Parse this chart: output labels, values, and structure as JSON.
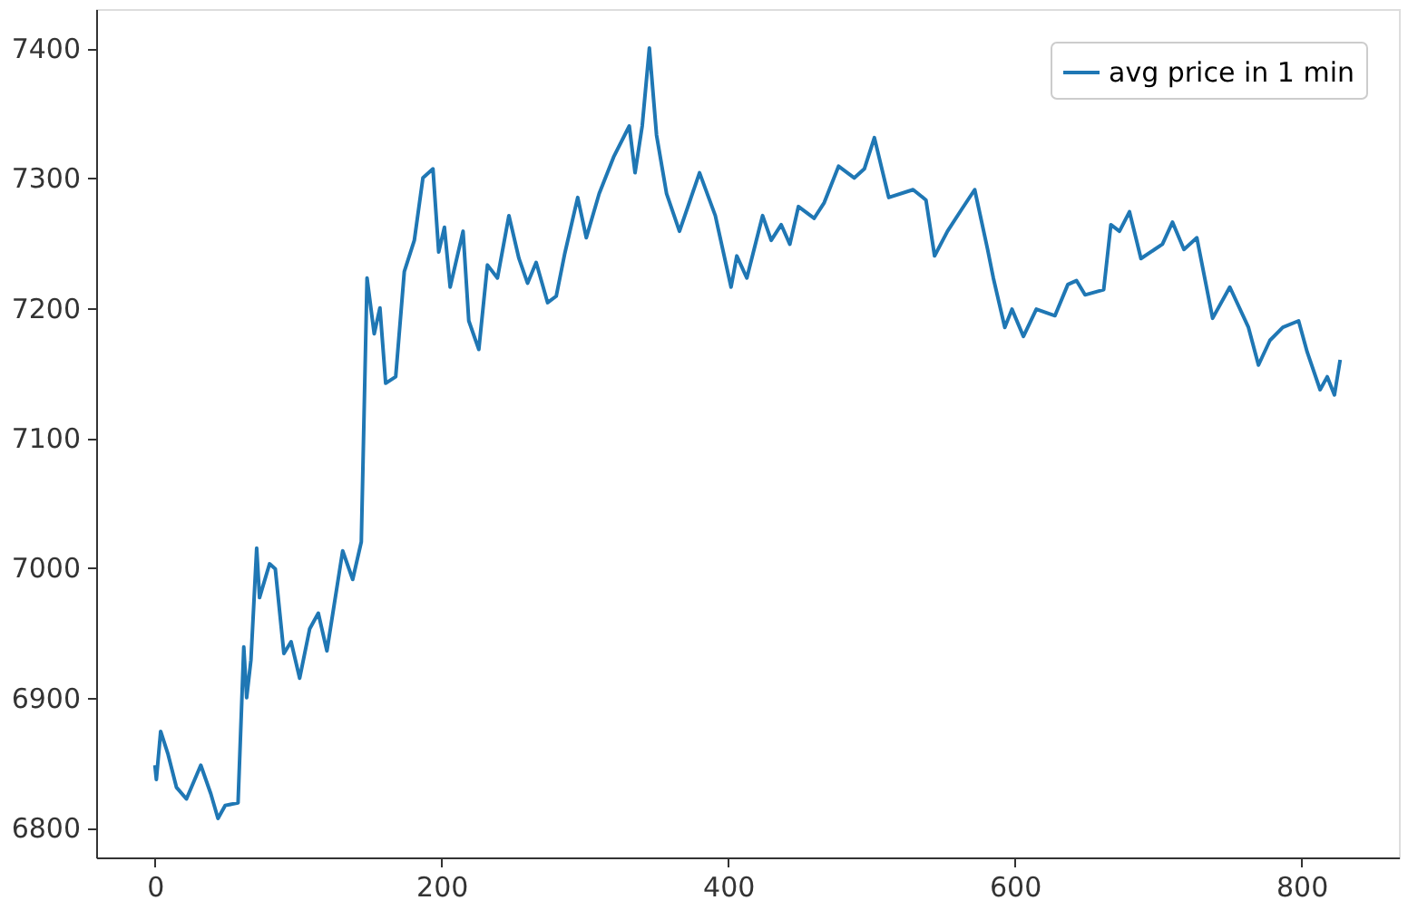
{
  "chart_data": {
    "type": "line",
    "xlim": [
      -41,
      868
    ],
    "xticks": [
      0,
      200,
      400,
      600,
      800
    ],
    "ylim": [
      6777,
      7430
    ],
    "yticks": [
      6800,
      6900,
      7000,
      7100,
      7200,
      7300,
      7400
    ],
    "grid": false,
    "legend": "top right",
    "marker": "none",
    "line_style": "solid",
    "series": [
      {
        "name": "avg price in 1 min",
        "color": "#1f77b4",
        "x": [
          0,
          1,
          4,
          9,
          15,
          22,
          32,
          39,
          44,
          49,
          58,
          62,
          64,
          67,
          71,
          73,
          80,
          84,
          90,
          95,
          101,
          108,
          114,
          120,
          131,
          138,
          144,
          148,
          153,
          157,
          161,
          168,
          174,
          181,
          187,
          194,
          198,
          202,
          206,
          215,
          219,
          226,
          232,
          239,
          247,
          254,
          260,
          266,
          274,
          280,
          286,
          295,
          301,
          310,
          320,
          331,
          335,
          340,
          345,
          350,
          357,
          366,
          380,
          391,
          402,
          406,
          413,
          424,
          430,
          437,
          443,
          449,
          460,
          467,
          477,
          488,
          495,
          502,
          512,
          529,
          538,
          544,
          553,
          563,
          572,
          581,
          585,
          593,
          598,
          606,
          615,
          628,
          637,
          643,
          649,
          662,
          667,
          673,
          680,
          688,
          703,
          710,
          718,
          727,
          738,
          750,
          763,
          770,
          778,
          787,
          798,
          804,
          813,
          818,
          823,
          827
        ],
        "values": [
          6848,
          6837,
          6874,
          6857,
          6831,
          6822,
          6848,
          6826,
          6807,
          6817,
          6819,
          6939,
          6900,
          6929,
          7015,
          6977,
          7003,
          6999,
          6934,
          6943,
          6915,
          6953,
          6965,
          6936,
          7013,
          6991,
          7020,
          7223,
          7180,
          7200,
          7142,
          7147,
          7228,
          7252,
          7300,
          7307,
          7243,
          7262,
          7216,
          7259,
          7190,
          7168,
          7233,
          7223,
          7271,
          7238,
          7219,
          7235,
          7204,
          7209,
          7242,
          7285,
          7254,
          7288,
          7316,
          7340,
          7304,
          7340,
          7400,
          7333,
          7288,
          7259,
          7304,
          7271,
          7216,
          7240,
          7223,
          7271,
          7252,
          7264,
          7249,
          7278,
          7269,
          7281,
          7309,
          7300,
          7307,
          7331,
          7285,
          7291,
          7283,
          7240,
          7259,
          7276,
          7291,
          7245,
          7223,
          7185,
          7199,
          7178,
          7199,
          7194,
          7218,
          7221,
          7210,
          7214,
          7264,
          7259,
          7274,
          7238,
          7249,
          7266,
          7245,
          7254,
          7192,
          7216,
          7185,
          7156,
          7175,
          7185,
          7190,
          7166,
          7137,
          7147,
          7133,
          7160
        ]
      }
    ]
  }
}
